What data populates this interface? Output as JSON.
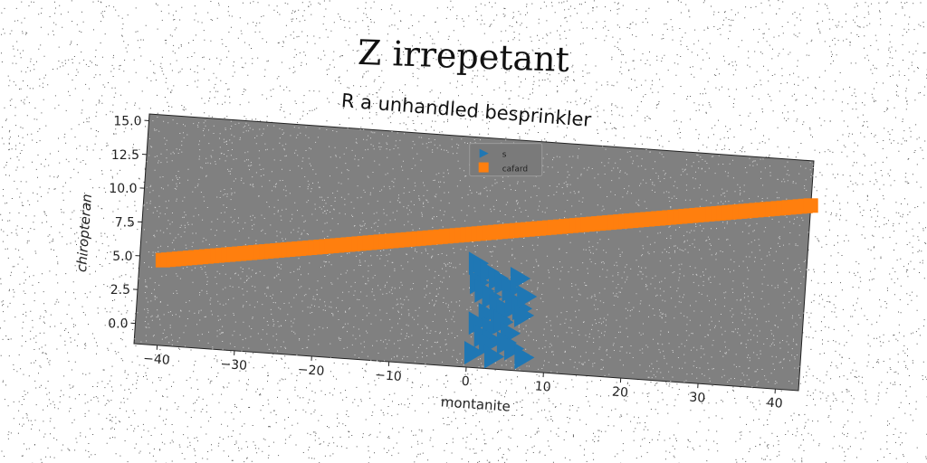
{
  "figure": {
    "title": "Z irrepetant",
    "subtitle": "R a unhandled besprinkler"
  },
  "chart_data": {
    "type": "scatter",
    "title": "R a unhandled besprinkler",
    "xlabel": "montanite",
    "ylabel": "chiropteran",
    "xlim": [
      -43,
      43
    ],
    "ylim": [
      -1.5,
      15.5
    ],
    "xticks": [
      -40,
      -30,
      -20,
      -10,
      0,
      10,
      20,
      30,
      40
    ],
    "yticks": [
      0.0,
      2.5,
      5.0,
      7.5,
      10.0,
      12.5,
      15.0
    ],
    "xtick_labels": [
      "−40",
      "−30",
      "−20",
      "−10",
      "0",
      "10",
      "20",
      "30",
      "40"
    ],
    "ytick_labels": [
      "0.0",
      "2.5",
      "5.0",
      "7.5",
      "10.0",
      "12.5",
      "15.0"
    ],
    "grid": false,
    "legend_position": "upper center",
    "background": "#808080",
    "series": [
      {
        "name": "s",
        "marker": "triangle-right",
        "color": "#1f77b4",
        "x": [
          0.5,
          1.2,
          0.8,
          2.0,
          1.5,
          3.2,
          2.5,
          4.0,
          3.5,
          5.0,
          4.5,
          6.0,
          2.2,
          3.8,
          5.5,
          1.0,
          2.8,
          4.2,
          6.5,
          7.0,
          1.8,
          3.0,
          5.2,
          6.8,
          2.5,
          4.8,
          0.7,
          3.3,
          5.8,
          7.2
        ],
        "y": [
          6.2,
          5.8,
          4.8,
          5.6,
          4.2,
          5.2,
          3.8,
          4.9,
          3.2,
          4.4,
          2.8,
          5.3,
          2.5,
          2.2,
          3.6,
          1.8,
          1.5,
          2.0,
          3.1,
          4.0,
          0.9,
          0.6,
          1.2,
          2.6,
          0.3,
          0.5,
          -0.4,
          -0.6,
          0.1,
          -0.5
        ]
      },
      {
        "name": "cafard",
        "marker": "square",
        "color": "#ff7f0e",
        "x_start": -40,
        "x_end": 43,
        "y_start": 4.8,
        "y_end": 12.2,
        "count": 120
      }
    ]
  }
}
